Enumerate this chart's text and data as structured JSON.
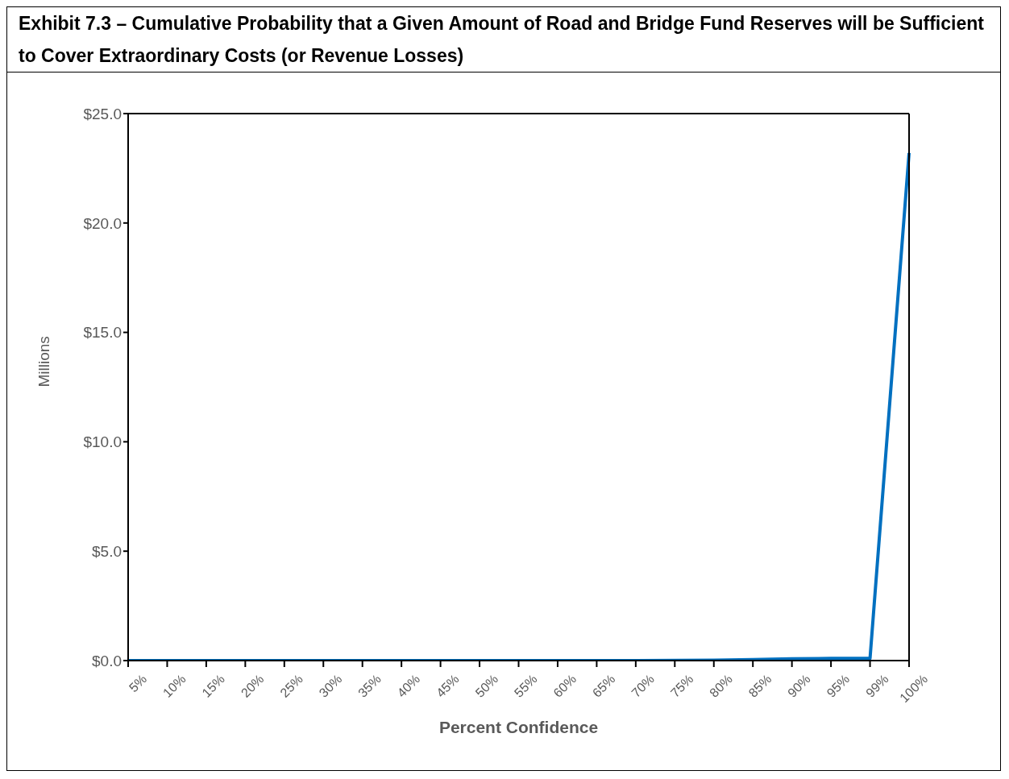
{
  "chart_data": {
    "type": "line",
    "title": "Exhibit 7.3 – Cumulative Probability that a Given Amount of Road and Bridge Fund Reserves will be Sufficient to Cover Extraordinary Costs (or Revenue Losses)",
    "xlabel": "Percent Confidence",
    "ylabel": "Millions",
    "categories": [
      "5%",
      "10%",
      "15%",
      "20%",
      "25%",
      "30%",
      "35%",
      "40%",
      "45%",
      "50%",
      "55%",
      "60%",
      "65%",
      "70%",
      "75%",
      "80%",
      "85%",
      "90%",
      "95%",
      "99%",
      "100%"
    ],
    "series": [
      {
        "color": "#0070c0",
        "values": [
          0,
          0,
          0,
          0,
          0,
          0,
          0,
          0,
          0,
          0,
          0,
          0,
          0,
          0,
          0.01,
          0.02,
          0.05,
          0.08,
          0.1,
          0.1,
          23.2
        ]
      }
    ],
    "ylim": [
      0,
      25
    ],
    "yticks": [
      {
        "value": 0,
        "label": "$0.0"
      },
      {
        "value": 5,
        "label": "$5.0"
      },
      {
        "value": 10,
        "label": "$10.0"
      },
      {
        "value": 15,
        "label": "$15.0"
      },
      {
        "value": 20,
        "label": "$20.0"
      },
      {
        "value": 25,
        "label": "$25.0"
      }
    ],
    "grid": false,
    "legend": false,
    "marker": "none",
    "line_style": "solid"
  }
}
